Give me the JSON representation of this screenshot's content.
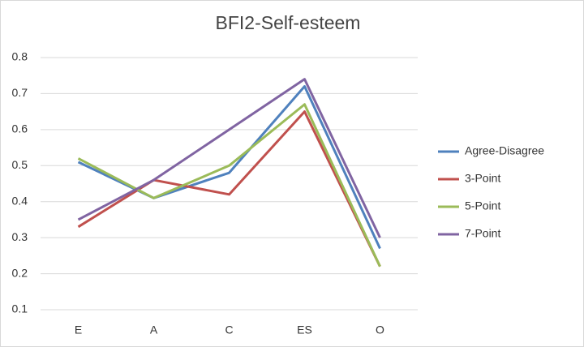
{
  "chart_data": {
    "type": "line",
    "title": "BFI2-Self-esteem",
    "categories": [
      "E",
      "A",
      "C",
      "ES",
      "O"
    ],
    "series": [
      {
        "name": "Agree-Disagree",
        "color": "#4f81bd",
        "values": [
          0.51,
          0.41,
          0.48,
          0.72,
          0.27
        ]
      },
      {
        "name": "3-Point",
        "color": "#c0504d",
        "values": [
          0.33,
          0.46,
          0.42,
          0.65,
          0.22
        ]
      },
      {
        "name": "5-Point",
        "color": "#9bbb59",
        "values": [
          0.52,
          0.41,
          0.5,
          0.67,
          0.22
        ]
      },
      {
        "name": "7-Point",
        "color": "#8064a2",
        "values": [
          0.35,
          0.46,
          0.6,
          0.74,
          0.3
        ]
      }
    ],
    "ylim": [
      0.1,
      0.8
    ],
    "yticks": [
      0.1,
      0.2,
      0.3,
      0.4,
      0.5,
      0.6,
      0.7,
      0.8
    ],
    "grid": true,
    "legend": "right"
  }
}
